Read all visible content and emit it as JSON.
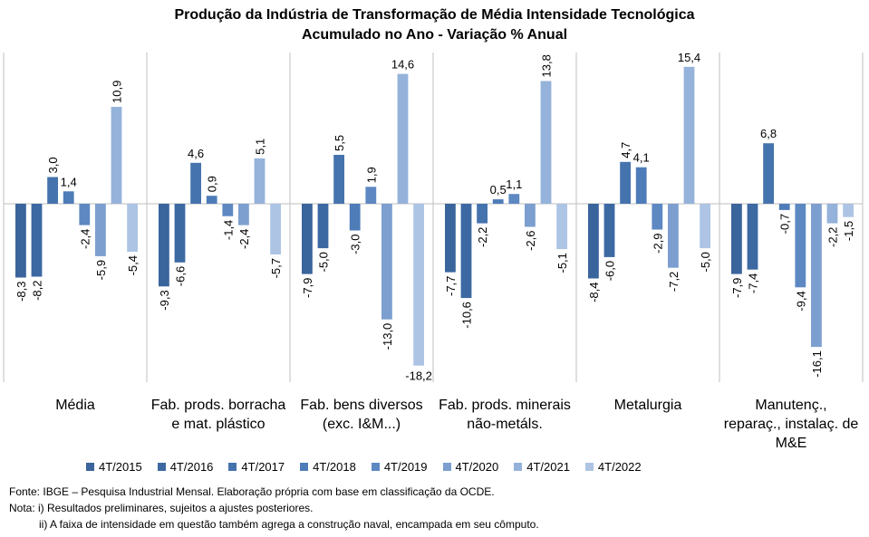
{
  "chart_data": {
    "type": "bar",
    "title": "Produção da Indústria de Transformação de Média Intensidade Tecnológica",
    "subtitle": "Acumulado no Ano - Variação % Anual",
    "xlabel": "",
    "ylabel": "",
    "ylim": [
      -20,
      17.5
    ],
    "grid": false,
    "legend_position": "bottom",
    "categories": [
      "Média",
      "Fab. prods. borracha e mat. plástico",
      "Fab. bens diversos (exc. I&M...)",
      "Fab. prods. minerais não-metáls.",
      "Metalurgia",
      "Manutenç., reparaç., instalaç. de M&E"
    ],
    "category_lines": [
      [
        "Média"
      ],
      [
        "Fab. prods. borracha",
        "e mat. plástico"
      ],
      [
        "Fab. bens diversos",
        "(exc. I&M...)"
      ],
      [
        "Fab. prods. minerais",
        "não-metáls."
      ],
      [
        "Metalurgia"
      ],
      [
        "Manutenç.,",
        "reparaç., instalaç. de",
        "M&E"
      ]
    ],
    "series": [
      {
        "name": "4T/2015",
        "color": "#3a649c",
        "values": [
          -8.3,
          -9.3,
          -7.9,
          -7.7,
          -8.4,
          -7.9
        ]
      },
      {
        "name": "4T/2016",
        "color": "#3d69a3",
        "values": [
          -8.2,
          -6.6,
          -5.0,
          -10.6,
          -6.0,
          -7.4
        ]
      },
      {
        "name": "4T/2017",
        "color": "#4573ad",
        "values": [
          3.0,
          4.6,
          5.5,
          -2.2,
          4.7,
          6.8
        ]
      },
      {
        "name": "4T/2018",
        "color": "#4e7cb8",
        "values": [
          1.4,
          0.9,
          -3.0,
          0.5,
          4.1,
          -0.7
        ]
      },
      {
        "name": "4T/2019",
        "color": "#5d88c2",
        "values": [
          -2.4,
          -1.4,
          1.9,
          1.1,
          -2.9,
          -9.4
        ]
      },
      {
        "name": "4T/2020",
        "color": "#7c9fcf",
        "values": [
          -5.9,
          -2.4,
          -13.0,
          -2.6,
          -7.2,
          -16.1
        ]
      },
      {
        "name": "4T/2021",
        "color": "#95b2da",
        "values": [
          10.9,
          5.1,
          14.6,
          13.8,
          15.4,
          -2.2
        ]
      },
      {
        "name": "4T/2022",
        "color": "#adc4e4",
        "values": [
          -5.4,
          -5.7,
          -18.2,
          -5.1,
          -5.0,
          -1.5
        ]
      }
    ],
    "label_orientation": [
      [
        -90,
        -90,
        -90,
        0,
        -90,
        -90,
        -90,
        -90
      ],
      [
        -90,
        -90,
        0,
        -90,
        -90,
        -90,
        -90,
        -90
      ],
      [
        -90,
        -90,
        -90,
        -90,
        -90,
        -90,
        0,
        0
      ],
      [
        -90,
        -90,
        -90,
        0,
        0,
        -90,
        -90,
        -90
      ],
      [
        -90,
        -90,
        -90,
        0,
        -90,
        -90,
        0,
        -90
      ],
      [
        -90,
        -90,
        0,
        -90,
        -90,
        -90,
        -90,
        -90
      ]
    ]
  },
  "notes": {
    "source": "Fonte: IBGE – Pesquisa Industrial Mensal. Elaboração própria com base em classificação da OCDE.",
    "note1": "Nota: i) Resultados preliminares, sujeitos a ajustes posteriores.",
    "note2": "ii) A faixa de intensidade em questão também agrega a construção naval, encampada em seu cômputo."
  }
}
